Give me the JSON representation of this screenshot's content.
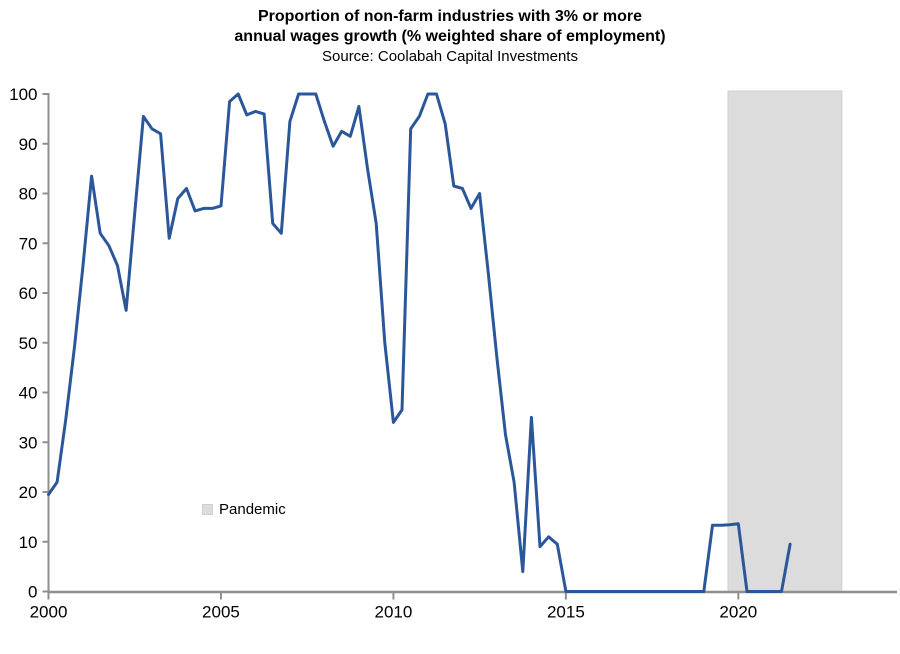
{
  "title": {
    "line1": "Proportion of non-farm industries with 3% or more",
    "line2": "annual wages growth (% weighted share of employment)",
    "source": "Source: Coolabah Capital Investments"
  },
  "legend": {
    "pandemic_label": "Pandemic"
  },
  "colors": {
    "line": "#2b579a",
    "band_fill": "#dcdcdc",
    "band_border": "#cfcfcf",
    "axis": "#8f8f8f",
    "text": "#000000"
  },
  "chart_data": {
    "type": "line",
    "title": "Proportion of non-farm industries with 3% or more annual wages growth (% weighted share of employment)",
    "source": "Source: Coolabah Capital Investments",
    "xlabel": "",
    "ylabel": "",
    "grid": false,
    "legend_position": "inside-lower-left",
    "xlim": [
      2000,
      2024.6
    ],
    "ylim": [
      0,
      100
    ],
    "x_ticks": [
      2000,
      2005,
      2010,
      2015,
      2020
    ],
    "y_ticks": [
      0,
      10,
      20,
      30,
      40,
      50,
      60,
      70,
      80,
      90,
      100
    ],
    "band": {
      "label": "Pandemic",
      "from": 2019.7,
      "to": 2023.0
    },
    "x": [
      2000,
      2000.25,
      2000.5,
      2000.75,
      2001,
      2001.25,
      2001.5,
      2001.75,
      2002,
      2002.25,
      2002.5,
      2002.75,
      2003,
      2003.25,
      2003.5,
      2003.75,
      2004,
      2004.25,
      2004.5,
      2004.75,
      2005,
      2005.25,
      2005.5,
      2005.75,
      2006,
      2006.25,
      2006.5,
      2006.75,
      2007,
      2007.25,
      2007.5,
      2007.75,
      2008,
      2008.25,
      2008.5,
      2008.75,
      2009,
      2009.25,
      2009.5,
      2009.75,
      2010,
      2010.25,
      2010.5,
      2010.75,
      2011,
      2011.25,
      2011.5,
      2011.75,
      2012,
      2012.25,
      2012.5,
      2012.75,
      2013,
      2013.25,
      2013.5,
      2013.75,
      2014,
      2014.25,
      2014.5,
      2014.75,
      2015,
      2015.25,
      2015.5,
      2015.75,
      2016,
      2016.25,
      2016.5,
      2016.75,
      2017,
      2017.25,
      2017.5,
      2017.75,
      2018,
      2018.25,
      2018.5,
      2018.75,
      2019,
      2019.25,
      2019.5,
      2019.75,
      2020,
      2020.25,
      2020.5,
      2020.75,
      2021,
      2021.25,
      2021.5
    ],
    "values": [
      19.5,
      22,
      34.5,
      49,
      65.5,
      83.5,
      72,
      69.5,
      65.5,
      56.5,
      76,
      95.5,
      93,
      92,
      71,
      79,
      81,
      76.5,
      77,
      77,
      77.5,
      98.5,
      100,
      95.8,
      96.5,
      96,
      74,
      72,
      94.5,
      100,
      100,
      100,
      94.5,
      89.5,
      92.5,
      91.5,
      97.5,
      85,
      74,
      50,
      34,
      36.5,
      93,
      95.5,
      100,
      100,
      94,
      81.5,
      81,
      77,
      80,
      64,
      47,
      31.5,
      22,
      4,
      35,
      9,
      11,
      9.5,
      0,
      0,
      0,
      0,
      0,
      0,
      0,
      0,
      0,
      0,
      0,
      0,
      0,
      0,
      0,
      0,
      0,
      13.3,
      13.3,
      13.4,
      13.6,
      0,
      0,
      0,
      0,
      0,
      9.5
    ]
  }
}
